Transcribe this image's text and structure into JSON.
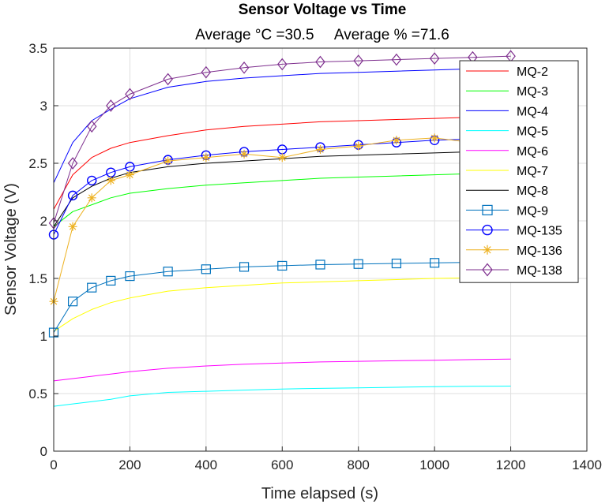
{
  "chart_data": {
    "type": "line",
    "title": "Sensor Voltage vs Time",
    "subtitle": "Average °C =30.5     Average % =71.6",
    "xlabel": "Time elapsed (s)",
    "ylabel": "Sensor Voltage (V)",
    "xlim": [
      0,
      1400
    ],
    "ylim": [
      0,
      3.5
    ],
    "xticks": [
      0,
      200,
      400,
      600,
      800,
      1000,
      1200,
      1400
    ],
    "yticks": [
      0,
      0.5,
      1,
      1.5,
      2,
      2.5,
      3,
      3.5
    ],
    "grid": true,
    "legend_position": "top-right",
    "x": [
      0,
      50,
      100,
      150,
      200,
      300,
      400,
      500,
      600,
      700,
      800,
      900,
      1000,
      1100,
      1200
    ],
    "series": [
      {
        "name": "MQ-2",
        "color": "#ff0000",
        "marker": "none",
        "values": [
          2.1,
          2.4,
          2.55,
          2.63,
          2.68,
          2.74,
          2.79,
          2.82,
          2.84,
          2.86,
          2.87,
          2.88,
          2.89,
          2.9,
          2.91
        ]
      },
      {
        "name": "MQ-3",
        "color": "#00ff00",
        "marker": "none",
        "values": [
          1.95,
          2.08,
          2.14,
          2.2,
          2.24,
          2.28,
          2.31,
          2.33,
          2.35,
          2.37,
          2.38,
          2.39,
          2.4,
          2.41,
          2.42
        ]
      },
      {
        "name": "MQ-4",
        "color": "#0000ff",
        "marker": "none",
        "values": [
          2.33,
          2.68,
          2.87,
          2.97,
          3.06,
          3.16,
          3.21,
          3.24,
          3.26,
          3.28,
          3.29,
          3.3,
          3.31,
          3.32,
          3.33
        ]
      },
      {
        "name": "MQ-5",
        "color": "#00ffff",
        "marker": "none",
        "values": [
          0.39,
          0.41,
          0.43,
          0.45,
          0.48,
          0.51,
          0.52,
          0.53,
          0.54,
          0.545,
          0.55,
          0.555,
          0.56,
          0.563,
          0.565
        ]
      },
      {
        "name": "MQ-6",
        "color": "#ff00ff",
        "marker": "none",
        "values": [
          0.61,
          0.63,
          0.65,
          0.67,
          0.69,
          0.72,
          0.74,
          0.755,
          0.765,
          0.775,
          0.78,
          0.785,
          0.79,
          0.795,
          0.8
        ]
      },
      {
        "name": "MQ-7",
        "color": "#ffff00",
        "marker": "none",
        "values": [
          1.04,
          1.15,
          1.23,
          1.29,
          1.33,
          1.39,
          1.42,
          1.44,
          1.46,
          1.47,
          1.48,
          1.49,
          1.5,
          1.505,
          1.51
        ]
      },
      {
        "name": "MQ-8",
        "color": "#000000",
        "marker": "none",
        "values": [
          1.95,
          2.2,
          2.3,
          2.37,
          2.42,
          2.47,
          2.5,
          2.52,
          2.54,
          2.56,
          2.57,
          2.58,
          2.59,
          2.6,
          2.61
        ]
      },
      {
        "name": "MQ-9",
        "color": "#0072bd",
        "marker": "square",
        "values": [
          1.03,
          1.3,
          1.42,
          1.48,
          1.52,
          1.56,
          1.58,
          1.6,
          1.61,
          1.62,
          1.625,
          1.63,
          1.635,
          1.64,
          1.645
        ]
      },
      {
        "name": "MQ-135",
        "color": "#0000ff",
        "marker": "circle",
        "values": [
          1.88,
          2.22,
          2.35,
          2.42,
          2.47,
          2.53,
          2.57,
          2.6,
          2.62,
          2.64,
          2.66,
          2.68,
          2.7,
          2.71,
          2.72
        ]
      },
      {
        "name": "MQ-136",
        "color": "#edb120",
        "marker": "star",
        "values": [
          1.3,
          1.95,
          2.2,
          2.35,
          2.4,
          2.52,
          2.55,
          2.58,
          2.55,
          2.62,
          2.65,
          2.7,
          2.72,
          2.68,
          2.62
        ]
      },
      {
        "name": "MQ-138",
        "color": "#7e2f8e",
        "marker": "diamond",
        "values": [
          1.98,
          2.5,
          2.82,
          3.0,
          3.1,
          3.23,
          3.29,
          3.33,
          3.36,
          3.38,
          3.39,
          3.4,
          3.41,
          3.42,
          3.43
        ]
      }
    ]
  }
}
